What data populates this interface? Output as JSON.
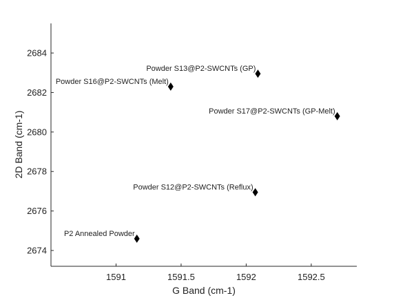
{
  "chart_data": {
    "type": "scatter",
    "xlabel": "G Band (cm-1)",
    "ylabel": "2D Band (cm-1)",
    "xlim": [
      1590.5,
      1592.85
    ],
    "ylim": [
      2673.2,
      2685.5
    ],
    "xticks": [
      1591,
      1591.5,
      1592,
      1592.5
    ],
    "yticks": [
      2674,
      2676,
      2678,
      2680,
      2682,
      2684
    ],
    "grid": false,
    "marker": "diamond",
    "marker_color": "#000000",
    "points": [
      {
        "label": "P2 Annealed Powder",
        "x": 1591.16,
        "y": 2674.6
      },
      {
        "label": "Powder S12@P2-SWCNTs (Reflux)",
        "x": 1592.07,
        "y": 2676.95
      },
      {
        "label": "Powder S16@P2-SWCNTs (Melt)",
        "x": 1591.42,
        "y": 2682.3
      },
      {
        "label": "Powder S13@P2-SWCNTs (GP)",
        "x": 1592.09,
        "y": 2682.95
      },
      {
        "label": "Powder S17@P2-SWCNTs (GP-Melt)",
        "x": 1592.7,
        "y": 2680.8
      }
    ]
  }
}
